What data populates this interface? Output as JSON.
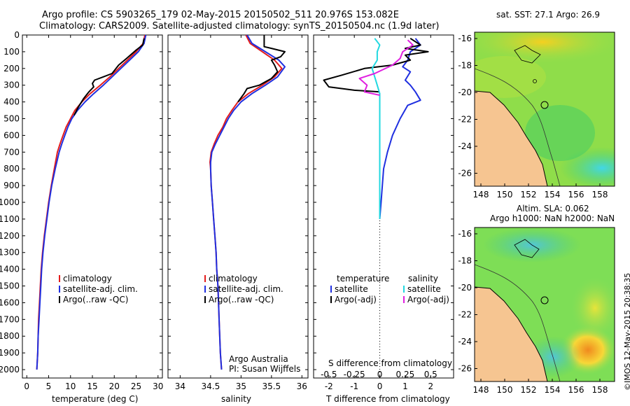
{
  "header": {
    "title_line1": "Argo profile: CS 5903265_179 02-May-2015 20150502_511 20.976S 153.082E",
    "title_line2": "Climatology: CARS2009. Satellite-adjusted climatology: synTS_20150504.nc (1.9d later)"
  },
  "colors": {
    "climatology": "#e41c1c",
    "satellite": "#1f2fe0",
    "argo": "#000000",
    "cyan": "#22d8e0",
    "magenta": "#e020e0",
    "land": "#f6c591"
  },
  "chart_data": [
    {
      "type": "line",
      "id": "temperature",
      "xlabel": "temperature (deg C)",
      "ylabel": "",
      "xlim": [
        -1,
        31
      ],
      "ylim": [
        2050,
        0
      ],
      "xticks": [
        0,
        5,
        10,
        15,
        20,
        25,
        30
      ],
      "yticks": [
        0,
        100,
        200,
        300,
        400,
        500,
        600,
        700,
        800,
        900,
        1000,
        1100,
        1200,
        1300,
        1400,
        1500,
        1600,
        1700,
        1800,
        1900,
        2000
      ],
      "legend": [
        "climatology",
        "satellite-adj. clim.",
        "Argo(..raw -QC)"
      ],
      "series": [
        {
          "name": "climatology",
          "color": "#e41c1c",
          "points": [
            [
              27.0,
              0
            ],
            [
              26.6,
              50
            ],
            [
              25.0,
              100
            ],
            [
              23.0,
              150
            ],
            [
              21.0,
              200
            ],
            [
              19.0,
              250
            ],
            [
              16.8,
              300
            ],
            [
              14.5,
              350
            ],
            [
              12.6,
              400
            ],
            [
              11.0,
              450
            ],
            [
              10.0,
              500
            ],
            [
              9.0,
              550
            ],
            [
              8.3,
              600
            ],
            [
              7.6,
              650
            ],
            [
              7.0,
              700
            ],
            [
              6.3,
              800
            ],
            [
              5.6,
              900
            ],
            [
              5.0,
              1000
            ],
            [
              4.5,
              1100
            ],
            [
              4.0,
              1200
            ],
            [
              3.6,
              1300
            ],
            [
              3.3,
              1400
            ],
            [
              3.1,
              1500
            ],
            [
              2.9,
              1600
            ],
            [
              2.7,
              1700
            ],
            [
              2.6,
              1800
            ],
            [
              2.5,
              1900
            ],
            [
              2.3,
              2000
            ]
          ]
        },
        {
          "name": "satellite-adj. clim.",
          "color": "#1f2fe0",
          "points": [
            [
              27.2,
              0
            ],
            [
              26.8,
              50
            ],
            [
              25.5,
              100
            ],
            [
              23.5,
              150
            ],
            [
              21.5,
              200
            ],
            [
              19.5,
              250
            ],
            [
              17.5,
              300
            ],
            [
              15.3,
              350
            ],
            [
              13.3,
              400
            ],
            [
              11.6,
              450
            ],
            [
              10.3,
              500
            ],
            [
              9.4,
              550
            ],
            [
              8.7,
              600
            ],
            [
              8.0,
              650
            ],
            [
              7.4,
              700
            ],
            [
              6.5,
              800
            ],
            [
              5.7,
              900
            ],
            [
              5.1,
              1000
            ],
            [
              4.6,
              1100
            ],
            [
              4.1,
              1200
            ],
            [
              3.7,
              1300
            ],
            [
              3.4,
              1400
            ],
            [
              3.2,
              1500
            ],
            [
              3.0,
              1600
            ],
            [
              2.8,
              1700
            ],
            [
              2.6,
              1800
            ],
            [
              2.5,
              1900
            ],
            [
              2.3,
              2000
            ]
          ]
        },
        {
          "name": "Argo(..raw -QC)",
          "color": "#000000",
          "points": [
            [
              26.8,
              20
            ],
            [
              26.5,
              60
            ],
            [
              25.0,
              90
            ],
            [
              22.8,
              140
            ],
            [
              21.0,
              180
            ],
            [
              19.5,
              230
            ],
            [
              17.5,
              250
            ],
            [
              15.5,
              270
            ],
            [
              15.0,
              290
            ],
            [
              15.3,
              310
            ],
            [
              14.2,
              340
            ],
            [
              13.0,
              380
            ],
            [
              11.8,
              430
            ],
            [
              10.8,
              480
            ]
          ]
        }
      ]
    },
    {
      "type": "line",
      "id": "salinity",
      "xlabel": "salinity",
      "ylabel": "",
      "xlim": [
        33.8,
        36.1
      ],
      "ylim": [
        2050,
        0
      ],
      "xticks": [
        34,
        34.5,
        35,
        35.5,
        36
      ],
      "legend": [
        "climatology",
        "satellite-adj. clim.",
        "Argo(..raw -QC)"
      ],
      "footnote": [
        "Argo Australia",
        "PI: Susan Wijffels"
      ],
      "series": [
        {
          "name": "climatology",
          "color": "#e41c1c",
          "points": [
            [
              35.08,
              0
            ],
            [
              35.15,
              50
            ],
            [
              35.35,
              100
            ],
            [
              35.55,
              150
            ],
            [
              35.67,
              200
            ],
            [
              35.55,
              250
            ],
            [
              35.35,
              300
            ],
            [
              35.12,
              350
            ],
            [
              34.95,
              400
            ],
            [
              34.85,
              450
            ],
            [
              34.76,
              500
            ],
            [
              34.7,
              550
            ],
            [
              34.62,
              600
            ],
            [
              34.56,
              650
            ],
            [
              34.51,
              700
            ],
            [
              34.49,
              760
            ],
            [
              34.5,
              800
            ],
            [
              34.51,
              900
            ],
            [
              34.53,
              1000
            ],
            [
              34.55,
              1100
            ],
            [
              34.57,
              1200
            ],
            [
              34.59,
              1300
            ],
            [
              34.6,
              1400
            ],
            [
              34.62,
              1500
            ],
            [
              34.63,
              1600
            ],
            [
              34.64,
              1700
            ],
            [
              34.65,
              1800
            ],
            [
              34.66,
              1900
            ],
            [
              34.68,
              2000
            ]
          ]
        },
        {
          "name": "satellite-adj. clim.",
          "color": "#1f2fe0",
          "points": [
            [
              35.1,
              0
            ],
            [
              35.18,
              50
            ],
            [
              35.4,
              100
            ],
            [
              35.62,
              150
            ],
            [
              35.72,
              190
            ],
            [
              35.6,
              250
            ],
            [
              35.4,
              300
            ],
            [
              35.18,
              350
            ],
            [
              35.0,
              400
            ],
            [
              34.88,
              450
            ],
            [
              34.79,
              500
            ],
            [
              34.72,
              550
            ],
            [
              34.65,
              600
            ],
            [
              34.58,
              650
            ],
            [
              34.52,
              700
            ],
            [
              34.5,
              760
            ],
            [
              34.5,
              800
            ],
            [
              34.51,
              900
            ],
            [
              34.53,
              1000
            ],
            [
              34.55,
              1100
            ],
            [
              34.57,
              1200
            ],
            [
              34.59,
              1300
            ],
            [
              34.6,
              1400
            ],
            [
              34.62,
              1500
            ],
            [
              34.63,
              1600
            ],
            [
              34.64,
              1700
            ],
            [
              34.65,
              1800
            ],
            [
              34.66,
              1900
            ],
            [
              34.68,
              2000
            ]
          ]
        },
        {
          "name": "Argo(..raw -QC)",
          "color": "#000000",
          "points": [
            [
              35.38,
              0
            ],
            [
              35.38,
              70
            ],
            [
              35.5,
              80
            ],
            [
              35.72,
              100
            ],
            [
              35.65,
              130
            ],
            [
              35.5,
              150
            ],
            [
              35.55,
              180
            ],
            [
              35.6,
              220
            ],
            [
              35.5,
              260
            ],
            [
              35.3,
              300
            ],
            [
              35.1,
              320
            ],
            [
              35.05,
              350
            ],
            [
              34.95,
              400
            ]
          ]
        }
      ]
    },
    {
      "type": "line",
      "id": "difference",
      "xlabel": "T difference from climatology",
      "xlabel_top": "S difference from climatology",
      "xlim": [
        -2.6,
        2.9
      ],
      "ylim": [
        2050,
        0
      ],
      "xticks": [
        -2,
        -1,
        0,
        1,
        2
      ],
      "xticklabels_top": [
        "-0.5",
        "-0.25",
        "0",
        "0.25",
        "0.5"
      ],
      "legend_temperature": [
        "temperature",
        "satellite",
        "Argo(-adj)"
      ],
      "legend_salinity": [
        "salinity",
        "satellite",
        "Argo(-adj)"
      ],
      "series": [
        {
          "name": "T satellite",
          "color": "#1f2fe0",
          "points": [
            [
              1.4,
              20
            ],
            [
              1.6,
              60
            ],
            [
              1.2,
              100
            ],
            [
              1.1,
              150
            ],
            [
              0.9,
              190
            ],
            [
              1.2,
              220
            ],
            [
              1.0,
              270
            ],
            [
              1.2,
              300
            ],
            [
              1.4,
              340
            ],
            [
              1.6,
              390
            ],
            [
              1.1,
              420
            ],
            [
              0.8,
              500
            ],
            [
              0.5,
              600
            ],
            [
              0.3,
              700
            ],
            [
              0.15,
              800
            ],
            [
              0.1,
              900
            ],
            [
              0.05,
              1000
            ],
            [
              0.0,
              1100
            ]
          ]
        },
        {
          "name": "T Argo(-adj)",
          "color": "#000000",
          "points": [
            [
              1.2,
              20
            ],
            [
              1.6,
              60
            ],
            [
              1.0,
              80
            ],
            [
              1.9,
              100
            ],
            [
              1.0,
              120
            ],
            [
              1.2,
              150
            ],
            [
              0.5,
              180
            ],
            [
              -0.6,
              200
            ],
            [
              -1.5,
              240
            ],
            [
              -2.2,
              270
            ],
            [
              -2.0,
              310
            ],
            [
              -1.0,
              330
            ],
            [
              0.0,
              340
            ]
          ]
        },
        {
          "name": "S satellite",
          "color": "#22d8e0",
          "points": [
            [
              -0.2,
              20
            ],
            [
              0.0,
              60
            ],
            [
              -0.1,
              100
            ],
            [
              -0.1,
              150
            ],
            [
              -0.3,
              200
            ],
            [
              -0.2,
              250
            ],
            [
              -0.1,
              300
            ],
            [
              0.0,
              350
            ],
            [
              0.0,
              400
            ],
            [
              0.0,
              500
            ],
            [
              0.0,
              600
            ],
            [
              0.0,
              700
            ],
            [
              0.0,
              800
            ],
            [
              0.0,
              900
            ],
            [
              0.0,
              1000
            ],
            [
              0.0,
              1100
            ]
          ]
        },
        {
          "name": "S Argo(-adj)",
          "color": "#e020e0",
          "points": [
            [
              1.1,
              30
            ],
            [
              1.3,
              60
            ],
            [
              0.9,
              100
            ],
            [
              0.8,
              140
            ],
            [
              0.5,
              180
            ],
            [
              -0.2,
              230
            ],
            [
              -0.8,
              260
            ],
            [
              -0.5,
              300
            ],
            [
              -0.6,
              340
            ],
            [
              0.0,
              360
            ]
          ]
        }
      ]
    }
  ],
  "maps": {
    "top": {
      "label": "sat. SST: 27.1 Argo: 26.9",
      "xticks": [
        "148",
        "150",
        "152",
        "154",
        "156",
        "158"
      ],
      "yticks": [
        "-16",
        "-18",
        "-20",
        "-22",
        "-24",
        "-26"
      ]
    },
    "bottom": {
      "label_line1": "Altim. SLA: 0.062",
      "label_line2": "Argo h1000: NaN h2000: NaN",
      "xticks": [
        "148",
        "150",
        "152",
        "154",
        "156",
        "158"
      ],
      "yticks": [
        "-16",
        "-18",
        "-20",
        "-22",
        "-24",
        "-26"
      ]
    }
  },
  "footer": {
    "timestamp": "©IMOS 12-May-2015 20:38:35"
  }
}
